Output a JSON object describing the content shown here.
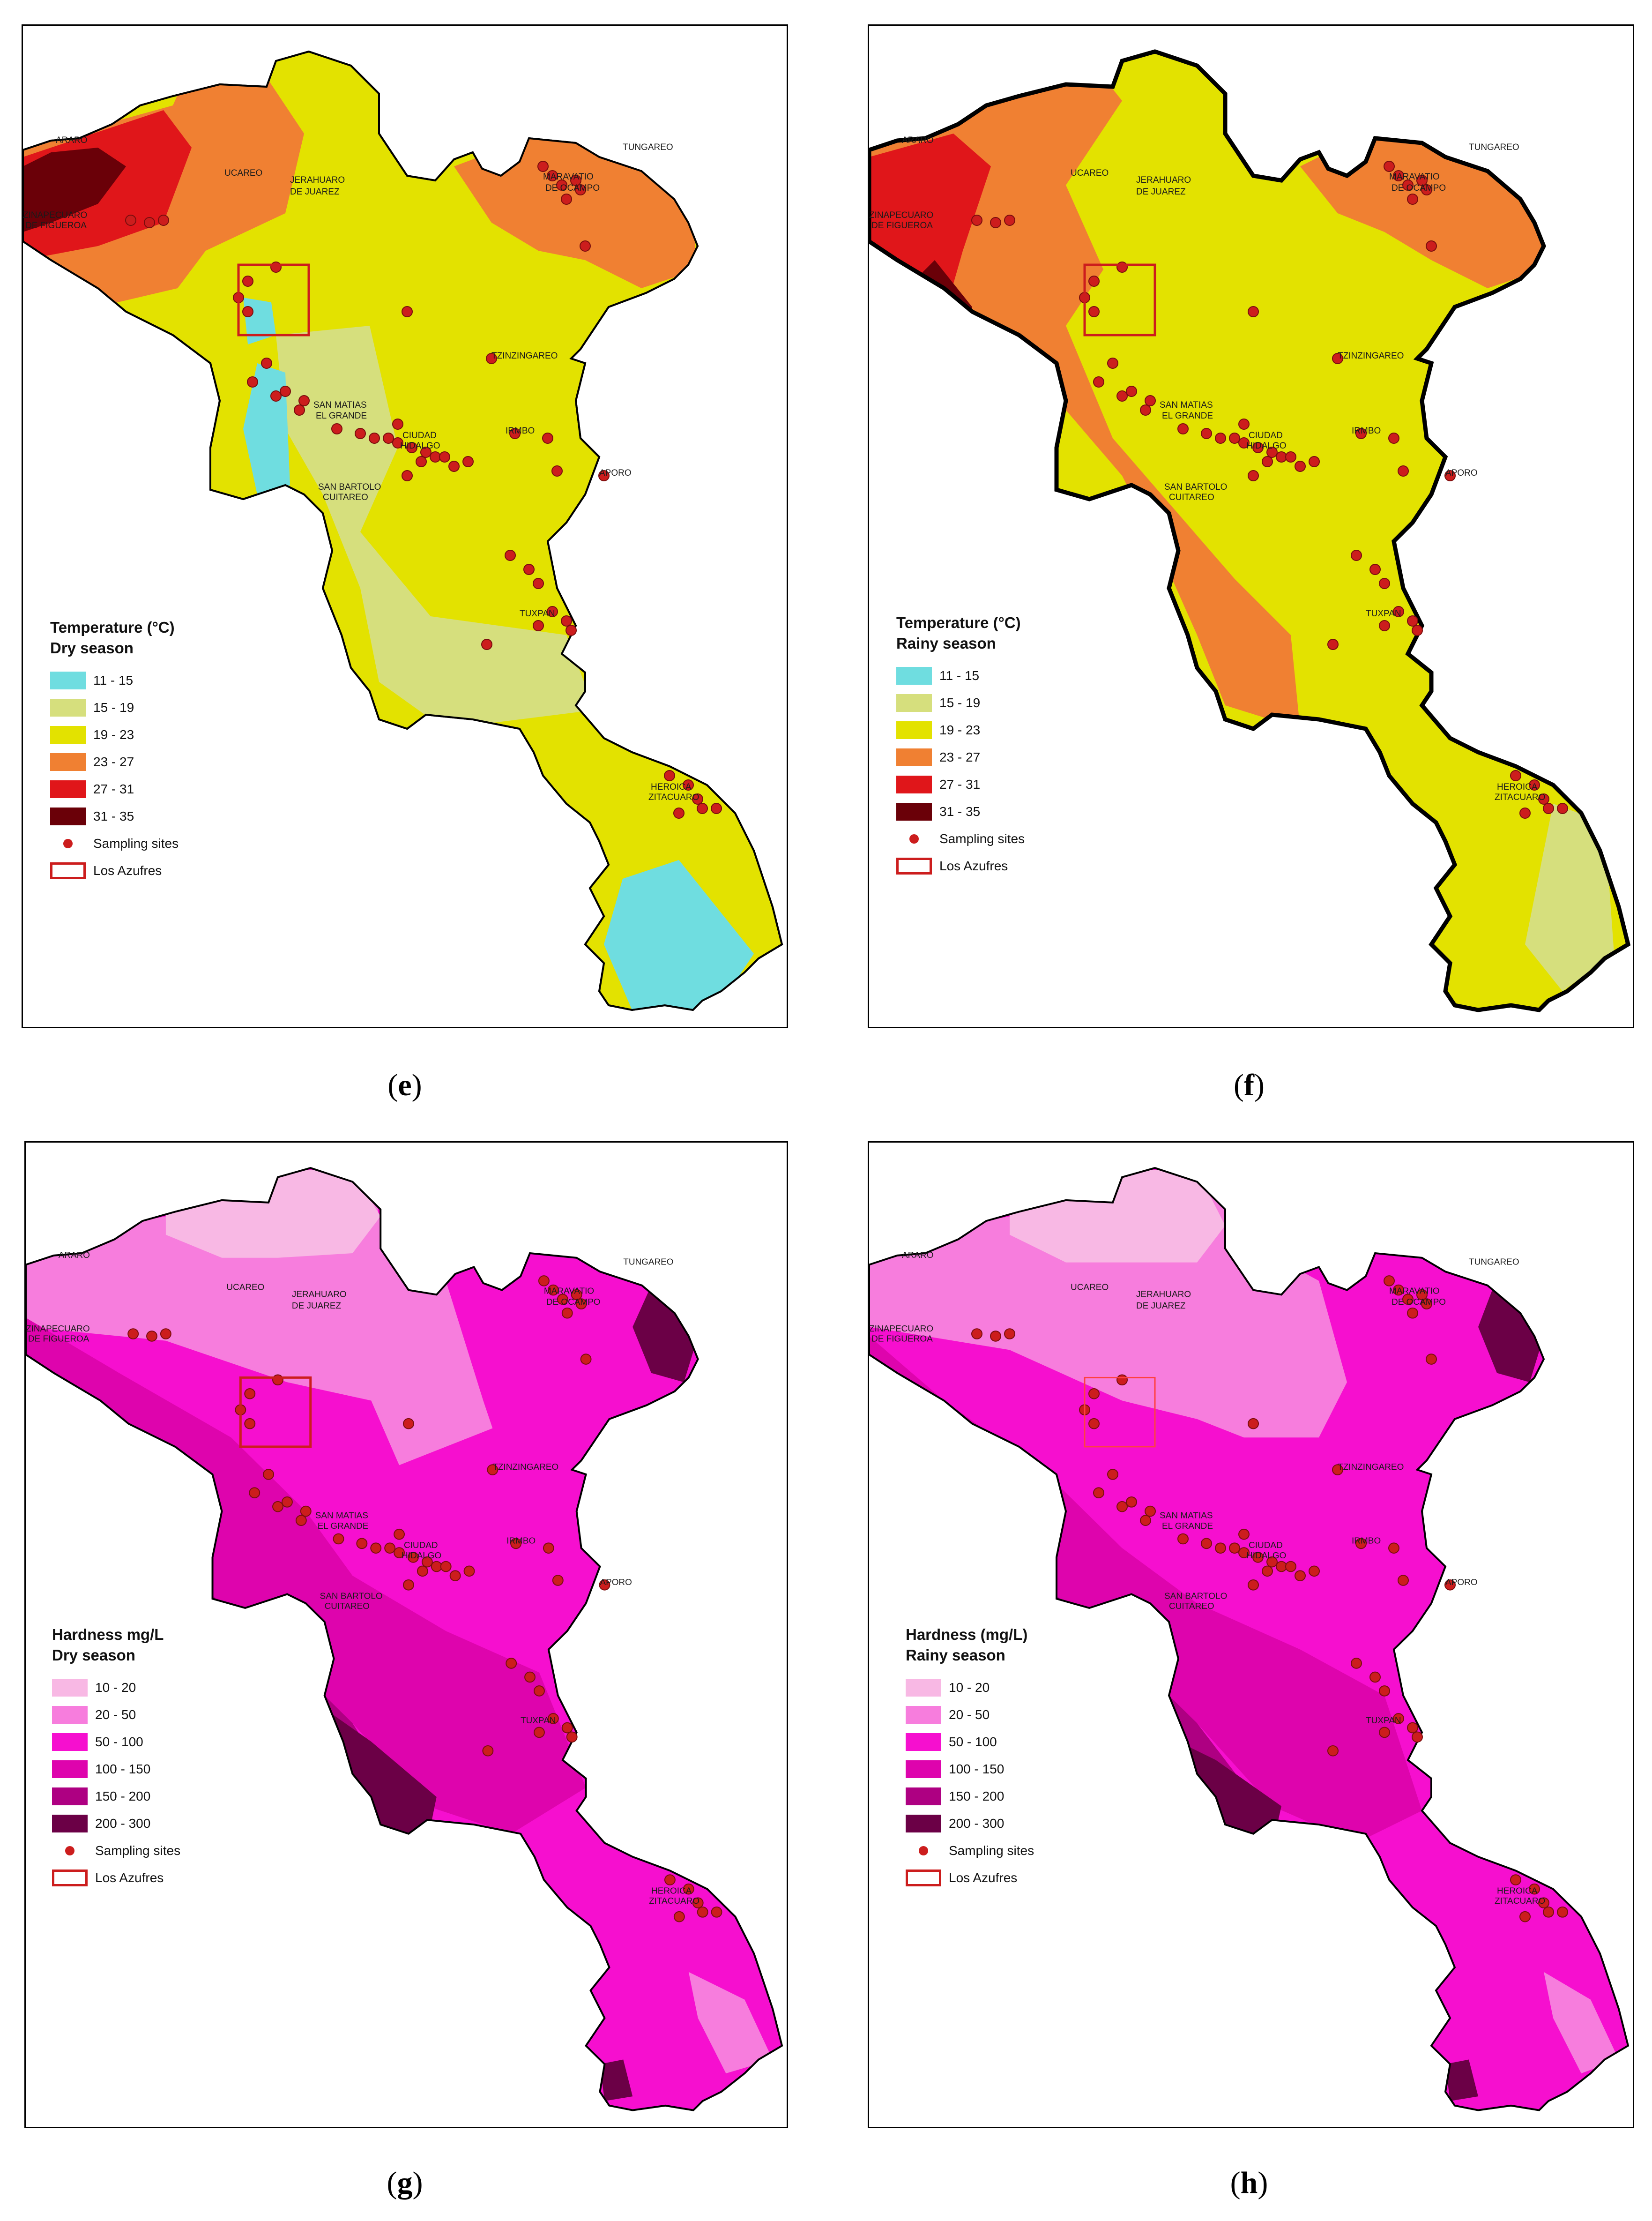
{
  "colors": {
    "temperature": [
      "#6fdde0",
      "#d6df7d",
      "#e3e200",
      "#f08032",
      "#e0161a",
      "#6a0008"
    ],
    "hardness": [
      "#f8b8e4",
      "#f77ddd",
      "#f60fcf",
      "#de04ad",
      "#ae0082",
      "#6b0046"
    ],
    "site": "#cc1d1d",
    "box": "#cc1d1d"
  },
  "towns": [
    "ARARO",
    "UCAREO",
    "JERAHUARO",
    "DE JUAREZ",
    "ZINAPECUARO",
    "DE FIGUEROA",
    "MARAVATIO",
    "DE OCAMPO",
    "TUNGAREO",
    "TZINZINGAREO",
    "SAN MATIAS",
    "EL GRANDE",
    "CIUDAD",
    "HIDALGO",
    "IRMBO",
    "APORO",
    "SAN BARTOLO",
    "CUITAREO",
    "TUXPAN",
    "HEROICA",
    "ZITACUARO"
  ],
  "panels": [
    {
      "caption": "e",
      "legend_title_1": "Temperature (°C)",
      "legend_title_2": "Dry season",
      "classes": [
        "11 -  15",
        "15 - 19",
        "19 - 23",
        "23 - 27",
        "27 - 31",
        "31 -  35"
      ],
      "sites_label": "Sampling sites",
      "box_label": "Los Azufres"
    },
    {
      "caption": "f",
      "legend_title_1": "Temperature (°C)",
      "legend_title_2": "Rainy season",
      "classes": [
        "11 -  15",
        "15 - 19",
        "19 - 23",
        "23 - 27",
        "27 - 31",
        "31 -  35"
      ],
      "sites_label": "Sampling sites",
      "box_label": "Los Azufres"
    },
    {
      "caption": "g",
      "legend_title_1": "Hardness mg/L",
      "legend_title_2": "Dry season",
      "classes": [
        "10 - 20",
        "20 - 50",
        "50 - 100",
        "100 - 150",
        "150 - 200",
        "200 - 300"
      ],
      "sites_label": "Sampling sites",
      "box_label": "Los Azufres"
    },
    {
      "caption": "h",
      "legend_title_1": "Hardness (mg/L)",
      "legend_title_2": "Rainy season",
      "classes": [
        "10 - 20",
        "20 - 50",
        "50 - 100",
        "100 - 150",
        "150 - 200",
        "200 - 300"
      ],
      "sites_label": "Sampling sites",
      "box_label": "Los Azufres"
    }
  ]
}
